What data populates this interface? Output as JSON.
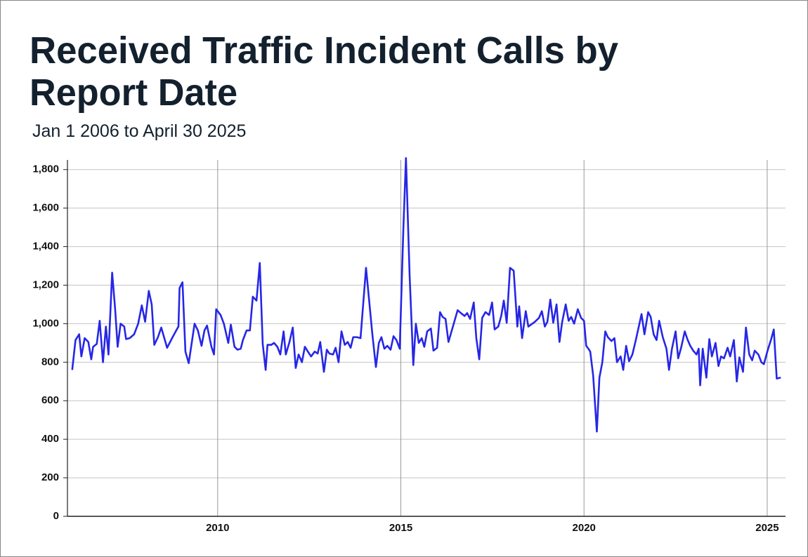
{
  "chart_data": {
    "type": "line",
    "title_lines": [
      "Received Traffic Incident Calls by",
      "Report Date"
    ],
    "subtitle": "Jan 1 2006 to April 30 2025",
    "xlim": [
      2005.9,
      2025.5
    ],
    "xticks": [
      2010,
      2015,
      2020,
      2025
    ],
    "ylim": [
      0,
      1850
    ],
    "yticks": [
      0,
      200,
      400,
      600,
      800,
      {
        "value": 1000,
        "label": "1,000"
      },
      {
        "value": 1200,
        "label": "1,200"
      },
      {
        "value": 1400,
        "label": "1,400"
      },
      {
        "value": 1600,
        "label": "1,600"
      },
      {
        "value": 1800,
        "label": "1,800"
      }
    ],
    "grid": true,
    "series": [
      {
        "color": "#2626e8",
        "x": [
          2006.03,
          2006.12,
          2006.22,
          2006.28,
          2006.37,
          2006.47,
          2006.55,
          2006.6,
          2006.7,
          2006.78,
          2006.87,
          2006.95,
          2007.02,
          2007.12,
          2007.2,
          2007.27,
          2007.35,
          2007.45,
          2007.5,
          2007.6,
          2007.72,
          2007.83,
          2007.93,
          2008.02,
          2008.12,
          2008.2,
          2008.27,
          2008.37,
          2008.46,
          2008.62,
          2008.77,
          2008.87,
          2008.93,
          2008.96,
          2009.04,
          2009.12,
          2009.21,
          2009.37,
          2009.46,
          2009.56,
          2009.64,
          2009.71,
          2009.83,
          2009.9,
          2009.96,
          2010.08,
          2010.17,
          2010.29,
          2010.36,
          2010.46,
          2010.54,
          2010.63,
          2010.69,
          2010.79,
          2010.88,
          2010.96,
          2011.06,
          2011.15,
          2011.23,
          2011.31,
          2011.36,
          2011.46,
          2011.54,
          2011.63,
          2011.71,
          2011.8,
          2011.86,
          2011.96,
          2012.05,
          2012.13,
          2012.21,
          2012.3,
          2012.38,
          2012.48,
          2012.55,
          2012.65,
          2012.73,
          2012.8,
          2012.9,
          2012.98,
          2013.05,
          2013.15,
          2013.22,
          2013.3,
          2013.38,
          2013.47,
          2013.55,
          2013.63,
          2013.7,
          2013.8,
          2013.9,
          2014.05,
          2014.22,
          2014.32,
          2014.4,
          2014.47,
          2014.55,
          2014.63,
          2014.72,
          2014.8,
          2014.88,
          2014.97,
          2015.07,
          2015.14,
          2015.24,
          2015.34,
          2015.41,
          2015.49,
          2015.57,
          2015.64,
          2015.72,
          2015.82,
          2015.89,
          2015.99,
          2016.07,
          2016.14,
          2016.22,
          2016.3,
          2016.55,
          2016.64,
          2016.74,
          2016.81,
          2016.89,
          2016.99,
          2017.06,
          2017.14,
          2017.22,
          2017.31,
          2017.41,
          2017.49,
          2017.56,
          2017.66,
          2017.74,
          2017.81,
          2017.89,
          2017.98,
          2018.08,
          2018.18,
          2018.23,
          2018.31,
          2018.41,
          2018.48,
          2018.66,
          2018.77,
          2018.85,
          2018.93,
          2019.0,
          2019.08,
          2019.16,
          2019.25,
          2019.33,
          2019.4,
          2019.5,
          2019.58,
          2019.65,
          2019.73,
          2019.83,
          2019.92,
          2020.0,
          2020.06,
          2020.12,
          2020.17,
          2020.25,
          2020.35,
          2020.42,
          2020.5,
          2020.58,
          2020.65,
          2020.75,
          2020.83,
          2020.9,
          2021.0,
          2021.07,
          2021.15,
          2021.23,
          2021.32,
          2021.42,
          2021.57,
          2021.65,
          2021.75,
          2021.82,
          2021.9,
          2021.98,
          2022.05,
          2022.15,
          2022.25,
          2022.32,
          2022.4,
          2022.5,
          2022.57,
          2022.65,
          2022.75,
          2022.82,
          2022.9,
          2022.98,
          2023.07,
          2023.13,
          2023.17,
          2023.24,
          2023.34,
          2023.42,
          2023.49,
          2023.59,
          2023.67,
          2023.74,
          2023.82,
          2023.92,
          2023.99,
          2024.09,
          2024.17,
          2024.24,
          2024.34,
          2024.42,
          2024.51,
          2024.59,
          2024.66,
          2024.76,
          2024.84,
          2024.91,
          2025.01,
          2025.11,
          2025.18,
          2025.26,
          2025.37
        ],
        "values": [
          760,
          915,
          945,
          830,
          925,
          905,
          815,
          880,
          895,
          1015,
          800,
          985,
          840,
          1265,
          1080,
          880,
          1000,
          985,
          920,
          925,
          945,
          1000,
          1095,
          1010,
          1170,
          1100,
          890,
          930,
          980,
          875,
          930,
          965,
          985,
          1185,
          1215,
          855,
          795,
          1000,
          965,
          885,
          965,
          990,
          880,
          840,
          1075,
          1045,
          1000,
          900,
          995,
          880,
          865,
          870,
          915,
          965,
          965,
          1140,
          1120,
          1315,
          895,
          760,
          890,
          890,
          900,
          880,
          840,
          960,
          840,
          905,
          980,
          770,
          840,
          800,
          880,
          850,
          830,
          855,
          845,
          905,
          750,
          865,
          845,
          840,
          875,
          800,
          960,
          890,
          905,
          875,
          930,
          930,
          925,
          1290,
          950,
          775,
          900,
          930,
          870,
          885,
          865,
          935,
          915,
          870,
          1500,
          1860,
          1250,
          785,
          1000,
          900,
          925,
          880,
          960,
          975,
          860,
          875,
          1060,
          1035,
          1025,
          905,
          1070,
          1055,
          1040,
          1055,
          1025,
          1110,
          925,
          815,
          1030,
          1060,
          1045,
          1110,
          970,
          985,
          1040,
          1120,
          1005,
          1290,
          1275,
          985,
          1090,
          925,
          1065,
          985,
          1010,
          1030,
          1065,
          985,
          1010,
          1125,
          1005,
          1100,
          905,
          1005,
          1100,
          1015,
          1035,
          1000,
          1075,
          1030,
          1015,
          885,
          870,
          855,
          730,
          440,
          720,
          800,
          960,
          930,
          910,
          925,
          800,
          830,
          760,
          885,
          805,
          840,
          920,
          1050,
          945,
          1060,
          1035,
          945,
          915,
          1015,
          930,
          870,
          760,
          870,
          960,
          820,
          875,
          960,
          920,
          885,
          860,
          840,
          870,
          680,
          870,
          720,
          920,
          830,
          900,
          780,
          830,
          820,
          875,
          830,
          915,
          700,
          825,
          750,
          980,
          840,
          810,
          860,
          840,
          800,
          790,
          860,
          920,
          970,
          715,
          720
        ]
      }
    ]
  }
}
